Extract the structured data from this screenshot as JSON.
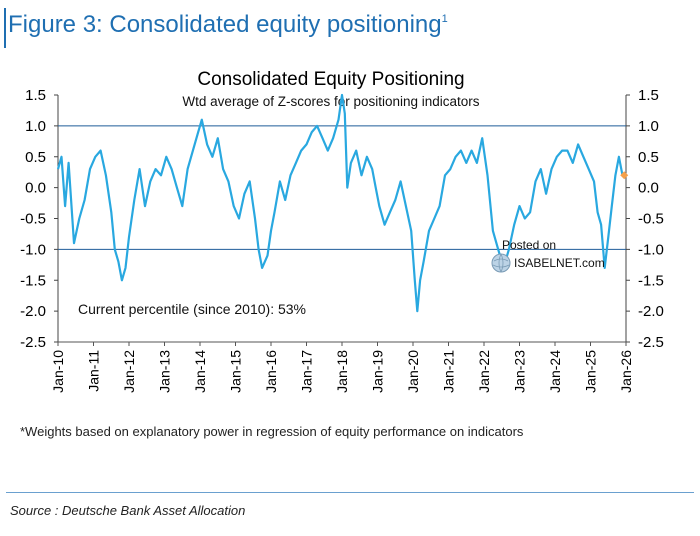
{
  "figure": {
    "title": "Figure 3: Consolidated equity positioning",
    "title_superscript": "1"
  },
  "footnote": "*Weights based on explanatory power in regression of equity performance on indicators",
  "source": "Source : Deutsche Bank Asset Allocation",
  "watermark": {
    "line1": "Posted on",
    "line2": "ISABELNET.com"
  },
  "chart_data": {
    "type": "line",
    "title": "Consolidated Equity Positioning",
    "subtitle": "Wtd average of Z-scores for positioning indicators",
    "annotation": "Current percentile (since 2010): 53%",
    "y_ticks": [
      "1.5",
      "1.0",
      "0.5",
      "0.0",
      "-0.5",
      "-1.0",
      "-1.5",
      "-2.0",
      "-2.5"
    ],
    "y_tick_values": [
      1.5,
      1.0,
      0.5,
      0.0,
      -0.5,
      -1.0,
      -1.5,
      -2.0,
      -2.5
    ],
    "ylim": [
      -2.5,
      1.5
    ],
    "x_ticks": [
      "Jan-10",
      "Jan-11",
      "Jan-12",
      "Jan-13",
      "Jan-14",
      "Jan-15",
      "Jan-16",
      "Jan-17",
      "Jan-18",
      "Jan-19",
      "Jan-20",
      "Jan-21",
      "Jan-22",
      "Jan-23",
      "Jan-24",
      "Jan-25",
      "Jan-26"
    ],
    "xlim": [
      2010.0,
      2026.0
    ],
    "gridlines_y": [
      1.0,
      -1.0
    ],
    "line_color": "#29a8e0",
    "latest_marker_color": "#f4a04a",
    "series": [
      {
        "x": [
          2010.0,
          2010.1,
          2010.2,
          2010.3,
          2010.45,
          2010.6,
          2010.75,
          2010.9,
          2011.05,
          2011.2,
          2011.35,
          2011.5,
          2011.6,
          2011.7,
          2011.8,
          2011.9,
          2012.0,
          2012.15,
          2012.3,
          2012.45,
          2012.6,
          2012.75,
          2012.9,
          2013.05,
          2013.2,
          2013.35,
          2013.5,
          2013.65,
          2013.8,
          2013.95,
          2014.05,
          2014.2,
          2014.35,
          2014.5,
          2014.65,
          2014.8,
          2014.95,
          2015.1,
          2015.25,
          2015.4,
          2015.55,
          2015.65,
          2015.75,
          2015.9,
          2016.0,
          2016.1,
          2016.25,
          2016.4,
          2016.55,
          2016.7,
          2016.85,
          2017.0,
          2017.15,
          2017.3,
          2017.45,
          2017.6,
          2017.75,
          2017.9,
          2018.0,
          2018.08,
          2018.15,
          2018.25,
          2018.4,
          2018.55,
          2018.7,
          2018.85,
          2018.95,
          2019.05,
          2019.2,
          2019.35,
          2019.5,
          2019.65,
          2019.8,
          2019.95,
          2020.05,
          2020.12,
          2020.2,
          2020.3,
          2020.45,
          2020.6,
          2020.75,
          2020.9,
          2021.05,
          2021.2,
          2021.35,
          2021.5,
          2021.65,
          2021.8,
          2021.95,
          2022.1,
          2022.25,
          2022.4,
          2022.55,
          2022.7,
          2022.85,
          2023.0,
          2023.15,
          2023.3,
          2023.45,
          2023.6,
          2023.75,
          2023.9,
          2024.05,
          2024.2,
          2024.35,
          2024.5,
          2024.65,
          2024.8,
          2024.95,
          2025.1,
          2025.2,
          2025.3,
          2025.4,
          2025.5,
          2025.6,
          2025.7,
          2025.8,
          2025.9
        ],
        "y": [
          0.3,
          0.5,
          -0.3,
          0.4,
          -0.9,
          -0.5,
          -0.2,
          0.3,
          0.5,
          0.6,
          0.2,
          -0.4,
          -1.0,
          -1.2,
          -1.5,
          -1.3,
          -0.8,
          -0.2,
          0.3,
          -0.3,
          0.1,
          0.3,
          0.2,
          0.5,
          0.3,
          0.0,
          -0.3,
          0.3,
          0.6,
          0.9,
          1.1,
          0.7,
          0.5,
          0.8,
          0.3,
          0.1,
          -0.3,
          -0.5,
          -0.1,
          0.1,
          -0.5,
          -1.0,
          -1.3,
          -1.1,
          -0.7,
          -0.4,
          0.1,
          -0.2,
          0.2,
          0.4,
          0.6,
          0.7,
          0.9,
          1.0,
          0.8,
          0.6,
          0.8,
          1.1,
          1.5,
          1.2,
          0.0,
          0.4,
          0.6,
          0.2,
          0.5,
          0.3,
          0.0,
          -0.3,
          -0.6,
          -0.4,
          -0.2,
          0.1,
          -0.3,
          -0.7,
          -1.5,
          -2.0,
          -1.5,
          -1.2,
          -0.7,
          -0.5,
          -0.3,
          0.2,
          0.3,
          0.5,
          0.6,
          0.4,
          0.6,
          0.4,
          0.8,
          0.2,
          -0.7,
          -1.0,
          -1.3,
          -1.0,
          -0.6,
          -0.3,
          -0.5,
          -0.4,
          0.1,
          0.3,
          -0.1,
          0.3,
          0.5,
          0.6,
          0.6,
          0.4,
          0.7,
          0.5,
          0.3,
          0.1,
          -0.4,
          -0.6,
          -1.3,
          -0.8,
          -0.3,
          0.2,
          0.5,
          0.2
        ]
      }
    ],
    "latest_point": {
      "x": 2025.95,
      "y": 0.2
    }
  }
}
